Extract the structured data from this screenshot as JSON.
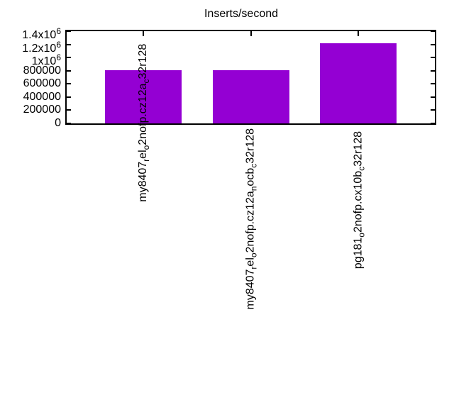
{
  "chart_data": {
    "type": "bar",
    "title": "Inserts/second",
    "xlabel": "",
    "ylabel": "",
    "categories": [
      "my8407_rel_o2nofp.cz12a_c32r128",
      "my8407_rel_o2nofp.cz12a_nocb_c32r128",
      "pg181_o2nofp.cx10b_c32r128"
    ],
    "category_display_segments": [
      [
        {
          "t": "my8407"
        },
        {
          "t": "r",
          "style": "sub"
        },
        {
          "t": "el"
        },
        {
          "t": "o",
          "style": "sub"
        },
        {
          "t": "2nofp.cz12a"
        },
        {
          "t": "c",
          "style": "sub"
        },
        {
          "t": "32r128"
        }
      ],
      [
        {
          "t": "my8407"
        },
        {
          "t": "r",
          "style": "sub"
        },
        {
          "t": "el"
        },
        {
          "t": "o",
          "style": "sub"
        },
        {
          "t": "2nofp.cz12a"
        },
        {
          "t": "n",
          "style": "sub"
        },
        {
          "t": "ocb"
        },
        {
          "t": "c",
          "style": "sub"
        },
        {
          "t": "32r128"
        }
      ],
      [
        {
          "t": "pg181"
        },
        {
          "t": "o",
          "style": "sub"
        },
        {
          "t": "2nofp.cx10b"
        },
        {
          "t": "c",
          "style": "sub"
        },
        {
          "t": "32r128"
        }
      ]
    ],
    "values": [
      805000,
      812000,
      1217000
    ],
    "ylim": [
      0,
      1400000
    ],
    "ytick_values": [
      0,
      200000,
      400000,
      600000,
      800000,
      1000000,
      1200000,
      1400000
    ],
    "ytick_segments": [
      [
        {
          "t": "0"
        }
      ],
      [
        {
          "t": "200000"
        }
      ],
      [
        {
          "t": "400000"
        }
      ],
      [
        {
          "t": "600000"
        }
      ],
      [
        {
          "t": "800000"
        }
      ],
      [
        {
          "t": "1x10"
        },
        {
          "t": "6",
          "style": "sup"
        }
      ],
      [
        {
          "t": "1.2x10"
        },
        {
          "t": "6",
          "style": "sup"
        }
      ],
      [
        {
          "t": "1.4x10"
        },
        {
          "t": "6",
          "style": "sup"
        }
      ]
    ],
    "bar_color": "#9400d3",
    "axis_color": "#000000",
    "background_color": "#ffffff",
    "grid": false,
    "legend": null
  }
}
